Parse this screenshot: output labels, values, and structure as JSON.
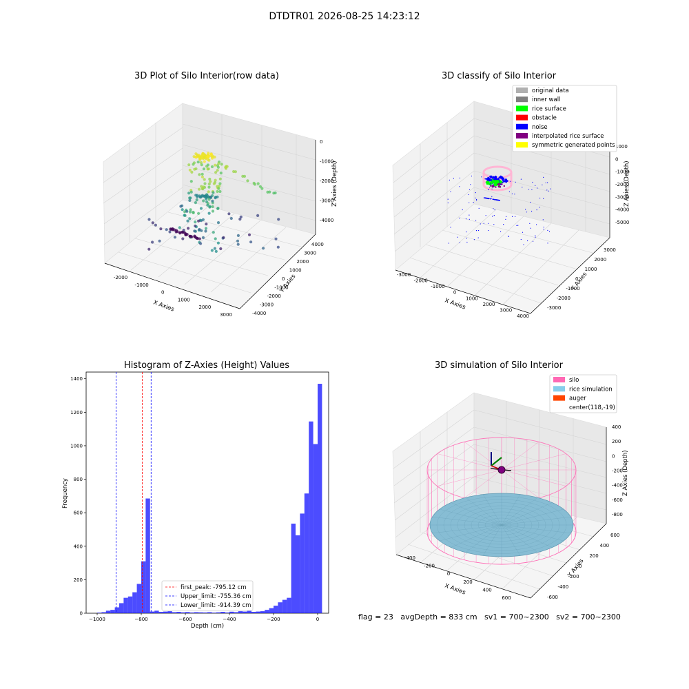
{
  "suptitle": "DTDTR01 2026-08-25 14:23:12",
  "footer": "flag = 23   avgDepth = 833 cm   sv1 = 700~2300   sv2 = 700~2300",
  "chart_data": [
    {
      "type": "scatter",
      "title": "3D Plot of Silo Interior(row data)",
      "xlabel": "X Axies",
      "ylabel": "Y Axies",
      "zlabel": "Z Axies (Depth)",
      "x_ticks": [
        "-2000",
        "-1000",
        "0",
        "1000",
        "2000",
        "3000"
      ],
      "y_ticks": [
        "-4000",
        "-3000",
        "-2000",
        "-1000",
        "0",
        "1000",
        "2000",
        "3000",
        "4000"
      ],
      "z_ticks": [
        "-4000",
        "-3000",
        "-2000",
        "-1000",
        "0"
      ],
      "colormap": "viridis"
    },
    {
      "type": "scatter",
      "title": "3D classify of Silo Interior",
      "xlabel": "X Axies",
      "ylabel": "Y Axies",
      "zlabel": "Z Axies (Depth)",
      "x_ticks": [
        "-3000",
        "-2000",
        "-1000",
        "0",
        "1000",
        "2000",
        "3000",
        "4000"
      ],
      "y_ticks": [
        "-3000",
        "-2000",
        "-1000",
        "0",
        "1000",
        "2000",
        "3000"
      ],
      "z_ticks": [
        "-5000",
        "-4000",
        "-3000",
        "-2000",
        "-1000",
        "0",
        "1000"
      ],
      "legend": [
        {
          "label": "original data",
          "color": "#b0b0b0"
        },
        {
          "label": "inner wall",
          "color": "#808080"
        },
        {
          "label": "rice surface",
          "color": "#00ff00"
        },
        {
          "label": "obstacle",
          "color": "#ff0000"
        },
        {
          "label": "noise",
          "color": "#0000ff"
        },
        {
          "label": "interpolated rice surface",
          "color": "#800080"
        },
        {
          "label": "symmetric generated points",
          "color": "#ffff00"
        }
      ]
    },
    {
      "type": "bar",
      "title": "Histogram of Z-Axies (Height) Values",
      "xlabel": "Depth (cm)",
      "ylabel": "Frequency",
      "xlim": [
        -1050,
        50
      ],
      "ylim": [
        0,
        1440
      ],
      "x_ticks": [
        -1000,
        -800,
        -600,
        -400,
        -200,
        0
      ],
      "y_ticks": [
        0,
        200,
        400,
        600,
        800,
        1000,
        1200,
        1400
      ],
      "bin_width": 20,
      "bins": [
        [
          -1000,
          3
        ],
        [
          -980,
          6
        ],
        [
          -960,
          15
        ],
        [
          -940,
          20
        ],
        [
          -920,
          35
        ],
        [
          -900,
          60
        ],
        [
          -880,
          92
        ],
        [
          -860,
          100
        ],
        [
          -840,
          125
        ],
        [
          -820,
          175
        ],
        [
          -800,
          310
        ],
        [
          -780,
          685
        ],
        [
          -760,
          10
        ],
        [
          -740,
          15
        ],
        [
          -720,
          8
        ],
        [
          -700,
          10
        ],
        [
          -680,
          12
        ],
        [
          -660,
          6
        ],
        [
          -640,
          8
        ],
        [
          -620,
          5
        ],
        [
          -600,
          7
        ],
        [
          -580,
          4
        ],
        [
          -560,
          6
        ],
        [
          -540,
          5
        ],
        [
          -520,
          4
        ],
        [
          -500,
          6
        ],
        [
          -480,
          3
        ],
        [
          -460,
          5
        ],
        [
          -440,
          8
        ],
        [
          -420,
          4
        ],
        [
          -400,
          9
        ],
        [
          -380,
          6
        ],
        [
          -360,
          12
        ],
        [
          -340,
          10
        ],
        [
          -320,
          14
        ],
        [
          -300,
          8
        ],
        [
          -280,
          10
        ],
        [
          -260,
          12
        ],
        [
          -240,
          20
        ],
        [
          -220,
          30
        ],
        [
          -200,
          45
        ],
        [
          -180,
          65
        ],
        [
          -160,
          80
        ],
        [
          -140,
          92
        ],
        [
          -120,
          535
        ],
        [
          -100,
          465
        ],
        [
          -80,
          595
        ],
        [
          -60,
          715
        ],
        [
          -40,
          1145
        ],
        [
          -20,
          1010
        ],
        [
          0,
          1370
        ]
      ],
      "bar_color": "#0000ff",
      "vlines": [
        {
          "label": "first_peak: -795.12 cm",
          "x": -795.12,
          "color": "#ff0000"
        },
        {
          "label": "Upper_limit: -755.36 cm",
          "x": -755.36,
          "color": "#0000ff"
        },
        {
          "label": "Lower_limit: -914.39 cm",
          "x": -914.39,
          "color": "#0000ff"
        }
      ]
    },
    {
      "type": "scatter",
      "title": "3D simulation of Silo Interior",
      "xlabel": "X Axies",
      "ylabel": "Y Axies",
      "zlabel": "Z Axies (Depth)",
      "x_ticks": [
        "-400",
        "-200",
        "0",
        "200",
        "400",
        "600"
      ],
      "y_ticks": [
        "-600",
        "-400",
        "-200",
        "0",
        "200",
        "400",
        "600"
      ],
      "z_ticks": [
        "-800",
        "-600",
        "-400",
        "-200",
        "0",
        "200",
        "400"
      ],
      "legend": [
        {
          "label": "silo",
          "color": "#ff69b4"
        },
        {
          "label": "rice simulation",
          "color": "#87ceeb"
        },
        {
          "label": "auger",
          "color": "#ff4500"
        },
        {
          "label": "center(118,-19)",
          "color": ""
        }
      ]
    }
  ]
}
